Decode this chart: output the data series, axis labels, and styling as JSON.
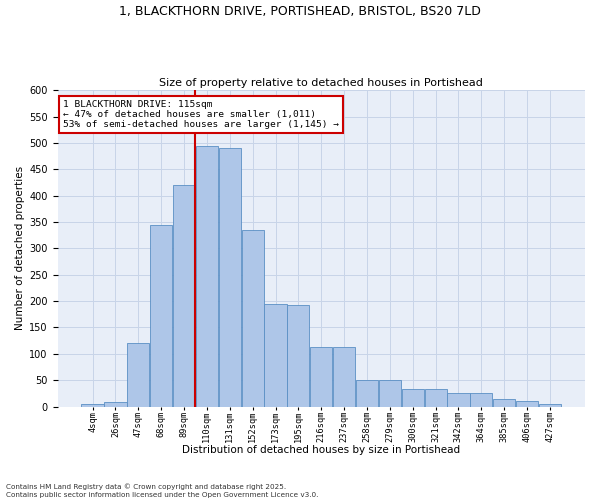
{
  "title_line1": "1, BLACKTHORN DRIVE, PORTISHEAD, BRISTOL, BS20 7LD",
  "title_line2": "Size of property relative to detached houses in Portishead",
  "xlabel": "Distribution of detached houses by size in Portishead",
  "ylabel": "Number of detached properties",
  "bar_labels": [
    "4sqm",
    "26sqm",
    "47sqm",
    "68sqm",
    "89sqm",
    "110sqm",
    "131sqm",
    "152sqm",
    "173sqm",
    "195sqm",
    "216sqm",
    "237sqm",
    "258sqm",
    "279sqm",
    "300sqm",
    "321sqm",
    "342sqm",
    "364sqm",
    "385sqm",
    "406sqm",
    "427sqm"
  ],
  "bar_heights": [
    5,
    8,
    120,
    345,
    420,
    495,
    490,
    335,
    195,
    193,
    112,
    112,
    50,
    50,
    33,
    33,
    25,
    25,
    15,
    10,
    5
  ],
  "bar_color": "#aec6e8",
  "bar_edge_color": "#5a8fc4",
  "vline_color": "#cc0000",
  "annotation_text": "1 BLACKTHORN DRIVE: 115sqm\n← 47% of detached houses are smaller (1,011)\n53% of semi-detached houses are larger (1,145) →",
  "annotation_box_color": "#ffffff",
  "annotation_box_edge": "#cc0000",
  "footnote": "Contains HM Land Registry data © Crown copyright and database right 2025.\nContains public sector information licensed under the Open Government Licence v3.0.",
  "grid_color": "#c8d4e8",
  "background_color": "#e8eef8",
  "ylim": [
    0,
    600
  ],
  "yticks": [
    0,
    50,
    100,
    150,
    200,
    250,
    300,
    350,
    400,
    450,
    500,
    550,
    600
  ]
}
